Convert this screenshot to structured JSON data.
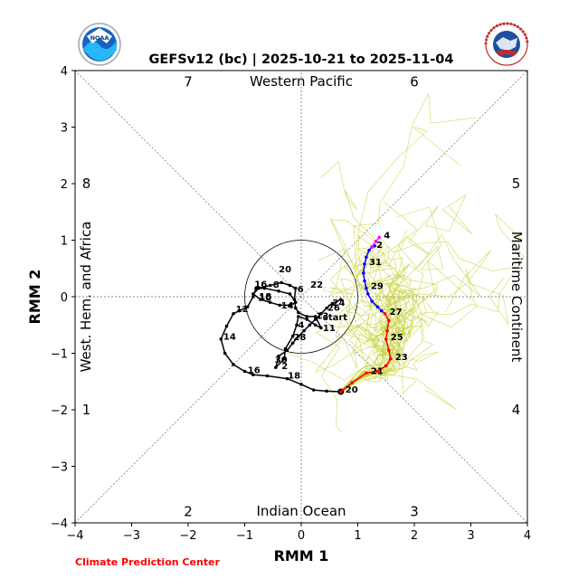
{
  "colors": {
    "analysis": "#000000",
    "forecast_week1": "#ff0000",
    "forecast_week2": "#0000ff",
    "forecast_tail": "#ff00ff",
    "ensemble": "#c8d23c",
    "credit": "#ff0000"
  },
  "logos": {
    "left": {
      "icon": "noaa-logo-icon",
      "text": "NOAA"
    },
    "right": {
      "icon": "nws-logo-icon",
      "text": "NATIONAL WEATHER SERVICE"
    }
  },
  "credit": "Climate Prediction Center",
  "chart_data": {
    "type": "line",
    "title": "GEFSv12 (bc) | 2025-10-21 to 2025-11-04",
    "xlabel": "RMM 1",
    "ylabel": "RMM 2",
    "xlim": [
      -4,
      4
    ],
    "ylim": [
      -4,
      4
    ],
    "xticks": [
      "−4",
      "−3",
      "−2",
      "−1",
      "0",
      "1",
      "2",
      "3",
      "4"
    ],
    "yticks": [
      "−4",
      "−3",
      "−2",
      "−1",
      "0",
      "1",
      "2",
      "3",
      "4"
    ],
    "tick_values": [
      -4,
      -3,
      -2,
      -1,
      0,
      1,
      2,
      3,
      4
    ],
    "grid": false,
    "unit_circle_radius": 1,
    "phases": [
      {
        "label": "1",
        "x": -3.8,
        "y": -2.0
      },
      {
        "label": "2",
        "x": -2.0,
        "y": -3.8
      },
      {
        "label": "3",
        "x": 2.0,
        "y": -3.8
      },
      {
        "label": "4",
        "x": 3.8,
        "y": -2.0
      },
      {
        "label": "5",
        "x": 3.8,
        "y": 2.0
      },
      {
        "label": "6",
        "x": 2.0,
        "y": 3.8
      },
      {
        "label": "7",
        "x": -2.0,
        "y": 3.8
      },
      {
        "label": "8",
        "x": -3.8,
        "y": 2.0
      }
    ],
    "regions": {
      "top": "Western Pacific",
      "bottom": "Indian Ocean",
      "left": "West. Hem. and Africa",
      "right": "Maritime Continent"
    },
    "start_label": "start",
    "observed": {
      "points": [
        [
          0.7,
          -0.05
        ],
        [
          0.55,
          -0.12
        ],
        [
          0.45,
          -0.2
        ],
        [
          0.35,
          -0.3
        ],
        [
          0.25,
          -0.4
        ],
        [
          0.15,
          -0.5
        ],
        [
          0.05,
          -0.6
        ],
        [
          -0.05,
          -0.7
        ],
        [
          -0.15,
          -0.82
        ],
        [
          -0.25,
          -0.95
        ],
        [
          -0.4,
          -1.05
        ],
        [
          -0.45,
          -1.25
        ],
        [
          -0.3,
          -1.1
        ],
        [
          -0.28,
          -0.92
        ],
        [
          -0.15,
          -0.7
        ],
        [
          -0.08,
          -0.5
        ],
        [
          -0.05,
          -0.35
        ],
        [
          0.1,
          -0.4
        ],
        [
          0.25,
          -0.5
        ],
        [
          0.35,
          -0.55
        ],
        [
          0.25,
          -0.35
        ],
        [
          0.1,
          -0.35
        ],
        [
          -0.05,
          -0.28
        ],
        [
          -0.1,
          -0.2
        ],
        [
          -0.12,
          -0.05
        ],
        [
          -0.1,
          0.15
        ],
        [
          -0.2,
          0.2
        ],
        [
          -0.35,
          0.25
        ],
        [
          -0.55,
          0.2
        ],
        [
          -0.75,
          0.15
        ],
        [
          -0.85,
          0.05
        ],
        [
          -0.72,
          -0.05
        ],
        [
          -0.55,
          -0.1
        ],
        [
          -0.38,
          -0.15
        ],
        [
          -0.2,
          -0.15
        ],
        [
          -0.1,
          -0.1
        ],
        [
          -0.2,
          0.05
        ],
        [
          -0.4,
          0.1
        ],
        [
          -0.65,
          0.15
        ],
        [
          -0.8,
          0.15
        ],
        [
          -0.85,
          0.0
        ],
        [
          -0.95,
          -0.18
        ],
        [
          -1.1,
          -0.25
        ],
        [
          -1.2,
          -0.3
        ],
        [
          -1.32,
          -0.52
        ],
        [
          -1.42,
          -0.75
        ],
        [
          -1.35,
          -1.0
        ],
        [
          -1.2,
          -1.2
        ],
        [
          -1.0,
          -1.32
        ],
        [
          -0.85,
          -1.38
        ],
        [
          -0.6,
          -1.4
        ],
        [
          -0.25,
          -1.45
        ],
        [
          0.0,
          -1.55
        ],
        [
          0.22,
          -1.65
        ],
        [
          0.45,
          -1.67
        ],
        [
          0.7,
          -1.68
        ]
      ],
      "labels": [
        {
          "text": "24",
          "x": 0.52,
          "y": -0.11
        },
        {
          "text": "26",
          "x": 0.43,
          "y": -0.2
        },
        {
          "text": "start",
          "x": 0.35,
          "y": -0.37
        },
        {
          "text": "11",
          "x": 0.35,
          "y": -0.56
        },
        {
          "text": "4",
          "x": -0.09,
          "y": -0.5
        },
        {
          "text": "28",
          "x": -0.17,
          "y": -0.72
        },
        {
          "text": "30",
          "x": -0.5,
          "y": -1.12
        },
        {
          "text": "2",
          "x": -0.38,
          "y": -1.23
        },
        {
          "text": "13",
          "x": 0.23,
          "y": -0.34
        },
        {
          "text": "6",
          "x": -0.1,
          "y": 0.13
        },
        {
          "text": "22",
          "x": 0.13,
          "y": 0.21
        },
        {
          "text": "20",
          "x": -0.43,
          "y": 0.48
        },
        {
          "text": "16",
          "x": -0.86,
          "y": 0.22
        },
        {
          "text": "8",
          "x": -0.53,
          "y": 0.21
        },
        {
          "text": "10",
          "x": -0.78,
          "y": -0.02
        },
        {
          "text": "18",
          "x": -0.78,
          "y": 0.0
        },
        {
          "text": "14",
          "x": -0.39,
          "y": -0.16
        },
        {
          "text": "12",
          "x": -1.19,
          "y": -0.22
        },
        {
          "text": "14",
          "x": -1.41,
          "y": -0.71
        },
        {
          "text": "16",
          "x": -0.98,
          "y": -1.3
        },
        {
          "text": "18",
          "x": -0.27,
          "y": -1.4
        }
      ]
    },
    "forecast": {
      "week1": [
        [
          0.7,
          -1.68
        ],
        [
          0.9,
          -1.52
        ],
        [
          1.15,
          -1.35
        ],
        [
          1.35,
          -1.32
        ],
        [
          1.5,
          -1.22
        ],
        [
          1.58,
          -1.1
        ],
        [
          1.55,
          -0.95
        ],
        [
          1.5,
          -0.75
        ],
        [
          1.52,
          -0.6
        ],
        [
          1.55,
          -0.42
        ],
        [
          1.48,
          -0.3
        ],
        [
          1.42,
          -0.25
        ]
      ],
      "week2": [
        [
          1.42,
          -0.25
        ],
        [
          1.35,
          -0.18
        ],
        [
          1.25,
          -0.08
        ],
        [
          1.18,
          0.05
        ],
        [
          1.15,
          0.15
        ],
        [
          1.12,
          0.28
        ],
        [
          1.1,
          0.42
        ],
        [
          1.12,
          0.58
        ],
        [
          1.15,
          0.7
        ],
        [
          1.2,
          0.82
        ],
        [
          1.25,
          0.88
        ],
        [
          1.3,
          0.9
        ]
      ],
      "tail": [
        [
          1.25,
          0.88
        ],
        [
          1.32,
          0.98
        ],
        [
          1.38,
          1.05
        ]
      ],
      "labels": [
        {
          "text": "20",
          "x": 0.7,
          "y": -1.68,
          "dx": 0.01
        },
        {
          "text": "21",
          "x": 1.15,
          "y": -1.35
        },
        {
          "text": "23",
          "x": 1.58,
          "y": -1.1
        },
        {
          "text": "25",
          "x": 1.5,
          "y": -0.75
        },
        {
          "text": "27",
          "x": 1.48,
          "y": -0.3
        },
        {
          "text": "29",
          "x": 1.15,
          "y": 0.15
        },
        {
          "text": "31",
          "x": 1.12,
          "y": 0.58
        },
        {
          "text": "2",
          "x": 1.25,
          "y": 0.88
        },
        {
          "text": "4",
          "x": 1.38,
          "y": 1.05
        }
      ]
    }
  }
}
